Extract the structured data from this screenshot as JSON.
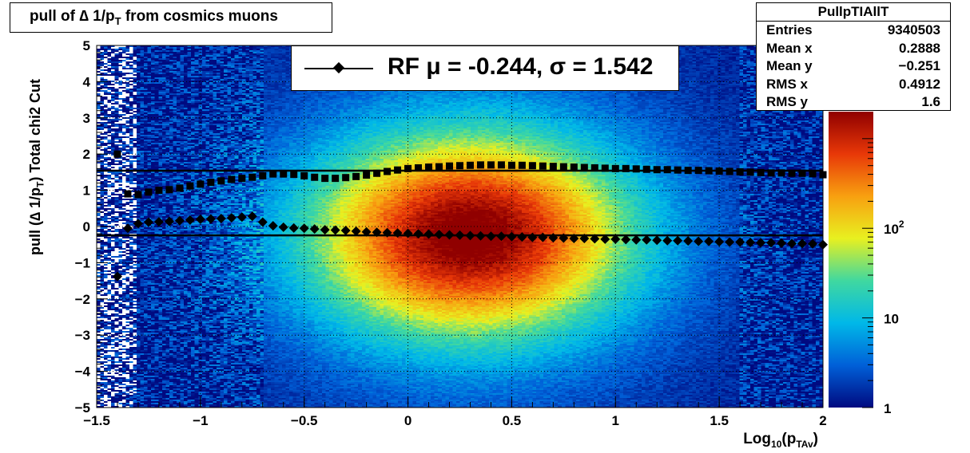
{
  "title": {
    "prefix": "pull of ",
    "delta": "∆",
    "mid": " 1/p",
    "sub": "T",
    "suffix": " from cosmics muons"
  },
  "stats_box": {
    "name": "PullpTIAllT",
    "rows": [
      {
        "label": "Entries",
        "value": "9340503"
      },
      {
        "label": "Mean x",
        "value": "0.2888"
      },
      {
        "label": "Mean y",
        "value": "−0.251"
      },
      {
        "label": "RMS x",
        "value": "0.4912"
      },
      {
        "label": "RMS y",
        "value": "1.6"
      }
    ]
  },
  "legend": {
    "text": "RF μ = -0.244, σ =   1.542"
  },
  "axes": {
    "ylabel_main": "pull (∆ 1/p",
    "ylabel_sub": "T",
    "ylabel_end": ")  Total chi2 Cut",
    "xlabel_main": "Log",
    "xlabel_sub1": "10",
    "xlabel_mid": "(p",
    "xlabel_sub2": "TAv",
    "xlabel_end": ")"
  },
  "chart_data": {
    "type": "heatmap",
    "xlim": [
      -1.5,
      2
    ],
    "ylim": [
      -5,
      5
    ],
    "x_ticks": [
      {
        "v": -1.5,
        "label": "−1.5"
      },
      {
        "v": -1,
        "label": "−1"
      },
      {
        "v": -0.5,
        "label": "−0.5"
      },
      {
        "v": 0,
        "label": "0"
      },
      {
        "v": 0.5,
        "label": "0.5"
      },
      {
        "v": 1,
        "label": "1"
      },
      {
        "v": 1.5,
        "label": "1.5"
      },
      {
        "v": 2,
        "label": "2"
      }
    ],
    "y_ticks": [
      {
        "v": 5,
        "label": "5"
      },
      {
        "v": 4,
        "label": "4"
      },
      {
        "v": 3,
        "label": "3"
      },
      {
        "v": 2,
        "label": "2"
      },
      {
        "v": 1,
        "label": "1"
      },
      {
        "v": 0,
        "label": "0"
      },
      {
        "v": -1,
        "label": "−1"
      },
      {
        "v": -2,
        "label": "−2"
      },
      {
        "v": -3,
        "label": "−3"
      },
      {
        "v": -4,
        "label": "−4"
      },
      {
        "v": -5,
        "label": "−5"
      }
    ],
    "grid": true,
    "z_scale": "log",
    "z_ticks": [
      {
        "v": 1,
        "label": "1"
      },
      {
        "v": 10,
        "label": "10"
      },
      {
        "v": 100,
        "label": "10",
        "sup": "2"
      }
    ],
    "palette": [
      "#000a80",
      "#0060d8",
      "#00b8e8",
      "#40d8a0",
      "#e8f020",
      "#f8a010",
      "#e83808",
      "#900000"
    ],
    "reference_lines": [
      1.542,
      -0.244
    ],
    "series": [
      {
        "marker": "square",
        "x": [
          -1.4,
          -1.35,
          -1.3,
          -1.25,
          -1.2,
          -1.15,
          -1.1,
          -1.05,
          -1,
          -0.95,
          -0.9,
          -0.85,
          -0.8,
          -0.75,
          -0.7,
          -0.65,
          -0.6,
          -0.55,
          -0.5,
          -0.45,
          -0.4,
          -0.35,
          -0.3,
          -0.25,
          -0.2,
          -0.15,
          -0.1,
          -0.05,
          0,
          0.05,
          0.1,
          0.15,
          0.2,
          0.25,
          0.3,
          0.35,
          0.4,
          0.45,
          0.5,
          0.55,
          0.6,
          0.65,
          0.7,
          0.75,
          0.8,
          0.85,
          0.9,
          0.95,
          1,
          1.05,
          1.1,
          1.15,
          1.2,
          1.25,
          1.3,
          1.35,
          1.4,
          1.45,
          1.5,
          1.55,
          1.6,
          1.65,
          1.7,
          1.75,
          1.8,
          1.85,
          1.9,
          1.95,
          2
        ],
        "y": [
          2.0,
          0.9,
          0.88,
          0.95,
          1.0,
          1.02,
          1.06,
          1.12,
          1.17,
          1.22,
          1.26,
          1.3,
          1.33,
          1.36,
          1.4,
          1.45,
          1.45,
          1.44,
          1.4,
          1.36,
          1.33,
          1.33,
          1.35,
          1.38,
          1.42,
          1.47,
          1.52,
          1.56,
          1.6,
          1.62,
          1.64,
          1.65,
          1.67,
          1.68,
          1.69,
          1.7,
          1.7,
          1.7,
          1.69,
          1.69,
          1.68,
          1.67,
          1.66,
          1.65,
          1.64,
          1.63,
          1.62,
          1.61,
          1.6,
          1.6,
          1.59,
          1.58,
          1.57,
          1.57,
          1.56,
          1.55,
          1.55,
          1.54,
          1.53,
          1.52,
          1.51,
          1.5,
          1.49,
          1.48,
          1.48,
          1.47,
          1.47,
          1.46,
          1.43
        ]
      },
      {
        "marker": "diamond",
        "x": [
          -1.4,
          -1.35,
          -1.3,
          -1.25,
          -1.2,
          -1.15,
          -1.1,
          -1.05,
          -1,
          -0.95,
          -0.9,
          -0.85,
          -0.8,
          -0.75,
          -0.7,
          -0.65,
          -0.6,
          -0.55,
          -0.5,
          -0.45,
          -0.4,
          -0.35,
          -0.3,
          -0.25,
          -0.2,
          -0.15,
          -0.1,
          -0.05,
          0,
          0.05,
          0.1,
          0.15,
          0.2,
          0.25,
          0.3,
          0.35,
          0.4,
          0.45,
          0.5,
          0.55,
          0.6,
          0.65,
          0.7,
          0.75,
          0.8,
          0.85,
          0.9,
          0.95,
          1,
          1.05,
          1.1,
          1.15,
          1.2,
          1.25,
          1.3,
          1.35,
          1.4,
          1.45,
          1.5,
          1.55,
          1.6,
          1.65,
          1.7,
          1.75,
          1.8,
          1.85,
          1.9,
          1.95,
          2
        ],
        "y": [
          -1.38,
          -0.05,
          0.08,
          0.12,
          0.13,
          0.14,
          0.16,
          0.18,
          0.2,
          0.21,
          0.22,
          0.24,
          0.26,
          0.28,
          0.12,
          0.02,
          -0.02,
          -0.04,
          -0.05,
          -0.07,
          -0.09,
          -0.1,
          -0.11,
          -0.13,
          -0.15,
          -0.16,
          -0.17,
          -0.18,
          -0.19,
          -0.2,
          -0.21,
          -0.22,
          -0.23,
          -0.24,
          -0.25,
          -0.26,
          -0.27,
          -0.27,
          -0.28,
          -0.29,
          -0.3,
          -0.3,
          -0.31,
          -0.32,
          -0.33,
          -0.33,
          -0.34,
          -0.35,
          -0.35,
          -0.36,
          -0.37,
          -0.37,
          -0.38,
          -0.39,
          -0.39,
          -0.4,
          -0.41,
          -0.41,
          -0.42,
          -0.43,
          -0.43,
          -0.44,
          -0.45,
          -0.45,
          -0.46,
          -0.47,
          -0.47,
          -0.48,
          -0.5
        ]
      }
    ]
  }
}
